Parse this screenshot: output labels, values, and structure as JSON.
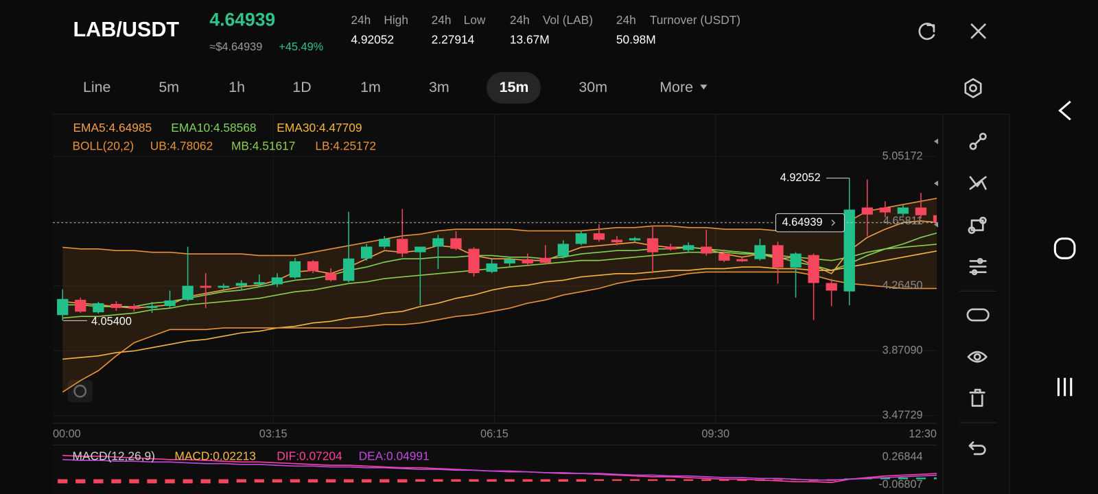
{
  "header": {
    "pair": "LAB/USDT",
    "price": "4.64939",
    "price_usd": "≈$4.64939",
    "change": "+45.49%",
    "stats": [
      {
        "period": "24h",
        "label": "High",
        "value": "4.92052"
      },
      {
        "period": "24h",
        "label": "Low",
        "value": "2.27914"
      },
      {
        "period": "24h",
        "label": "Vol (LAB)",
        "value": "13.67M"
      },
      {
        "period": "24h",
        "label": "Turnover (USDT)",
        "value": "50.98M"
      }
    ]
  },
  "tabs": [
    "Line",
    "5m",
    "1h",
    "1D",
    "1m",
    "3m",
    "15m",
    "30m",
    "More"
  ],
  "active_tab": "15m",
  "chart_data": [
    {
      "type": "candlestick",
      "up_color": "#22c08a",
      "down_color": "#f6465d",
      "ylim": [
        3.43,
        5.31
      ],
      "yticks": [
        5.05172,
        4.65811,
        {
          "value": 4.2645,
          "label": "4.26450"
        },
        {
          "value": 3.8709,
          "label": "3.87090"
        },
        3.47729
      ],
      "time_labels": [
        "00:00",
        "03:15",
        "06:15",
        "09:30",
        "12:30"
      ],
      "grid": true,
      "open": [
        4.088,
        4.181,
        4.105,
        4.156,
        4.143,
        4.131,
        4.143,
        4.181,
        4.266,
        4.254,
        4.266,
        4.275,
        4.275,
        4.317,
        4.415,
        4.343,
        4.296,
        4.432,
        4.504,
        4.551,
        4.47,
        4.504,
        4.555,
        4.491,
        4.351,
        4.402,
        4.428,
        4.436,
        4.445,
        4.521,
        4.585,
        4.546,
        4.542,
        4.555,
        4.504,
        4.483,
        4.504,
        4.462,
        4.428,
        4.428,
        4.513,
        4.377,
        4.453,
        4.283,
        4.232,
        4.742,
        4.742,
        4.704,
        4.742,
        4.695
      ],
      "high": [
        4.245,
        4.194,
        4.169,
        4.173,
        4.156,
        4.169,
        4.237,
        4.504,
        4.343,
        4.279,
        4.3,
        4.334,
        4.343,
        4.436,
        4.423,
        4.372,
        4.716,
        4.521,
        4.568,
        4.733,
        4.504,
        4.576,
        4.598,
        4.5,
        4.428,
        4.445,
        4.462,
        4.513,
        4.542,
        4.598,
        4.64,
        4.568,
        4.563,
        4.631,
        4.521,
        4.53,
        4.606,
        4.487,
        4.436,
        4.551,
        4.534,
        4.47,
        4.462,
        4.309,
        4.92052,
        4.912,
        4.78,
        4.759,
        4.831,
        4.704
      ],
      "low": [
        4.054,
        4.101,
        4.097,
        4.114,
        4.109,
        4.101,
        4.131,
        4.173,
        4.131,
        4.245,
        4.237,
        4.258,
        4.258,
        4.309,
        4.343,
        4.292,
        4.288,
        4.419,
        4.491,
        4.44,
        4.148,
        4.368,
        4.483,
        4.322,
        4.343,
        4.385,
        4.385,
        4.394,
        4.432,
        4.513,
        4.534,
        4.513,
        4.534,
        4.343,
        4.479,
        4.47,
        4.449,
        4.411,
        4.411,
        4.419,
        4.279,
        4.194,
        4.058,
        4.143,
        4.148,
        4.568,
        4.682,
        4.691,
        4.674,
        4.657
      ],
      "close": [
        4.186,
        4.109,
        4.16,
        4.131,
        4.126,
        4.143,
        4.177,
        4.266,
        4.254,
        4.266,
        4.283,
        4.288,
        4.317,
        4.415,
        4.356,
        4.3,
        4.432,
        4.504,
        4.551,
        4.462,
        4.504,
        4.555,
        4.491,
        4.343,
        4.402,
        4.428,
        4.402,
        4.406,
        4.521,
        4.585,
        4.546,
        4.53,
        4.555,
        4.47,
        4.487,
        4.513,
        4.462,
        4.419,
        4.415,
        4.513,
        4.377,
        4.462,
        4.283,
        4.237,
        4.729,
        4.699,
        4.712,
        4.742,
        4.695,
        4.649
      ],
      "boll_title": "BOLL(20,2)",
      "series": [
        {
          "label": "EMA5:4.64985",
          "color": "#f39c4b",
          "values": [
            4.17,
            4.16,
            4.15,
            4.14,
            4.13,
            4.14,
            4.15,
            4.2,
            4.22,
            4.24,
            4.26,
            4.27,
            4.3,
            4.35,
            4.36,
            4.34,
            4.38,
            4.43,
            4.48,
            4.47,
            4.48,
            4.51,
            4.5,
            4.45,
            4.43,
            4.43,
            4.42,
            4.42,
            4.46,
            4.5,
            4.51,
            4.52,
            4.53,
            4.51,
            4.5,
            4.5,
            4.49,
            4.46,
            4.44,
            4.46,
            4.43,
            4.44,
            4.39,
            4.34,
            4.48,
            4.56,
            4.61,
            4.65,
            4.66,
            4.65
          ]
        },
        {
          "label": "EMA10:4.58568",
          "color": "#7fd35a",
          "values": [
            4.15,
            4.15,
            4.14,
            4.14,
            4.14,
            4.16,
            4.17,
            4.19,
            4.21,
            4.23,
            4.24,
            4.26,
            4.28,
            4.3,
            4.31,
            4.33,
            4.36,
            4.38,
            4.41,
            4.43,
            4.43,
            4.44,
            4.44,
            4.45,
            4.45,
            4.44,
            4.44,
            4.43,
            4.44,
            4.46,
            4.47,
            4.48,
            4.48,
            4.49,
            4.49,
            4.5,
            4.49,
            4.48,
            4.47,
            4.46,
            4.44,
            4.41,
            4.39,
            4.36,
            4.4,
            4.45,
            4.49,
            4.52,
            4.56,
            4.59
          ]
        },
        {
          "label": "EMA30:4.47709",
          "color": "#f4b63e",
          "values": [
            3.82,
            3.83,
            3.84,
            3.86,
            3.87,
            3.89,
            3.91,
            3.93,
            3.94,
            3.96,
            3.98,
            3.99,
            4.01,
            4.02,
            4.04,
            4.05,
            4.07,
            4.08,
            4.1,
            4.11,
            4.14,
            4.16,
            4.19,
            4.21,
            4.24,
            4.26,
            4.27,
            4.29,
            4.3,
            4.32,
            4.33,
            4.34,
            4.34,
            4.35,
            4.36,
            4.36,
            4.37,
            4.37,
            4.38,
            4.38,
            4.37,
            4.37,
            4.36,
            4.36,
            4.38,
            4.4,
            4.42,
            4.44,
            4.46,
            4.48
          ]
        },
        {
          "label": "UB:4.78062",
          "color": "#e8913a",
          "values": [
            4.5,
            4.49,
            4.49,
            4.48,
            4.48,
            4.47,
            4.47,
            4.46,
            4.46,
            4.46,
            4.46,
            4.45,
            4.45,
            4.45,
            4.47,
            4.49,
            4.51,
            4.53,
            4.55,
            4.57,
            4.58,
            4.6,
            4.61,
            4.61,
            4.61,
            4.61,
            4.6,
            4.6,
            4.6,
            4.6,
            4.61,
            4.62,
            4.62,
            4.63,
            4.63,
            4.62,
            4.62,
            4.61,
            4.61,
            4.61,
            4.6,
            4.6,
            4.6,
            4.6,
            4.66,
            4.72,
            4.74,
            4.76,
            4.78,
            4.8
          ]
        },
        {
          "label": "MB:4.51617",
          "color": "#8ccf4d",
          "values": [
            4.07,
            4.08,
            4.08,
            4.09,
            4.1,
            4.12,
            4.13,
            4.15,
            4.16,
            4.17,
            4.18,
            4.19,
            4.21,
            4.23,
            4.24,
            4.26,
            4.28,
            4.29,
            4.31,
            4.32,
            4.33,
            4.34,
            4.35,
            4.36,
            4.37,
            4.38,
            4.39,
            4.4,
            4.41,
            4.42,
            4.42,
            4.43,
            4.44,
            4.45,
            4.46,
            4.47,
            4.47,
            4.47,
            4.46,
            4.46,
            4.45,
            4.44,
            4.43,
            4.42,
            4.44,
            4.47,
            4.49,
            4.5,
            4.51,
            4.52
          ]
        },
        {
          "label": "LB:4.25172",
          "color": "#e8913a",
          "values": [
            3.62,
            3.69,
            3.75,
            3.84,
            3.92,
            3.96,
            4.0,
            4.0,
            4.0,
            4.01,
            4.01,
            4.01,
            4.01,
            4.01,
            4.01,
            4.01,
            4.01,
            4.02,
            4.03,
            4.03,
            4.04,
            4.06,
            4.08,
            4.09,
            4.11,
            4.13,
            4.16,
            4.18,
            4.21,
            4.23,
            4.25,
            4.28,
            4.3,
            4.31,
            4.32,
            4.34,
            4.35,
            4.35,
            4.35,
            4.35,
            4.35,
            4.35,
            4.33,
            4.3,
            4.28,
            4.27,
            4.26,
            4.25,
            4.25,
            4.25
          ]
        }
      ],
      "high_marker": 4.92052,
      "low_marker": {
        "value": 4.054,
        "label": "4.05400"
      },
      "last_price": 4.64939
    },
    {
      "type": "macd",
      "title": "MACD(12,26,9)",
      "ylim": [
        -0.18,
        0.34
      ],
      "yticks": [
        0.26844,
        -0.06807
      ],
      "histogram": {
        "label": "MACD:0.02213",
        "color": "#f5b942",
        "up_color": "#22c08a",
        "down_color": "#f6465d",
        "values": [
          -0.05,
          -0.05,
          -0.05,
          -0.05,
          -0.05,
          -0.05,
          -0.05,
          -0.05,
          -0.05,
          -0.05,
          -0.04,
          -0.04,
          -0.04,
          -0.04,
          -0.04,
          -0.04,
          -0.04,
          -0.04,
          -0.04,
          -0.04,
          -0.03,
          -0.03,
          -0.03,
          -0.03,
          -0.03,
          -0.03,
          -0.03,
          -0.03,
          -0.03,
          -0.03,
          -0.02,
          -0.02,
          -0.02,
          -0.02,
          -0.02,
          -0.02,
          -0.02,
          -0.02,
          -0.02,
          -0.02,
          -0.01,
          -0.01,
          -0.02,
          -0.02,
          0.01,
          0.02,
          0.02,
          0.02,
          0.02,
          0.022
        ]
      },
      "series": [
        {
          "label": "DIF:0.07204",
          "color": "#ff3fa0",
          "values": [
            0.29,
            0.28,
            0.28,
            0.27,
            0.26,
            0.25,
            0.24,
            0.24,
            0.23,
            0.22,
            0.21,
            0.21,
            0.2,
            0.19,
            0.18,
            0.17,
            0.17,
            0.16,
            0.15,
            0.14,
            0.14,
            0.13,
            0.12,
            0.11,
            0.1,
            0.1,
            0.09,
            0.08,
            0.07,
            0.07,
            0.06,
            0.05,
            0.04,
            0.03,
            0.03,
            0.02,
            0.01,
            0.0,
            0.0,
            -0.01,
            -0.02,
            -0.03,
            -0.03,
            -0.04,
            0.0,
            0.02,
            0.04,
            0.05,
            0.06,
            0.072
          ]
        },
        {
          "label": "DEA:0.04991",
          "color": "#c04ae0",
          "values": [
            0.24,
            0.23,
            0.23,
            0.22,
            0.22,
            0.21,
            0.21,
            0.2,
            0.19,
            0.19,
            0.18,
            0.18,
            0.17,
            0.16,
            0.16,
            0.15,
            0.15,
            0.14,
            0.14,
            0.13,
            0.12,
            0.12,
            0.11,
            0.11,
            0.1,
            0.09,
            0.09,
            0.08,
            0.08,
            0.07,
            0.07,
            0.06,
            0.05,
            0.05,
            0.04,
            0.04,
            0.03,
            0.02,
            0.02,
            0.01,
            0.01,
            0.0,
            -0.01,
            -0.01,
            0.0,
            0.01,
            0.02,
            0.03,
            0.04,
            0.05
          ]
        }
      ]
    }
  ]
}
